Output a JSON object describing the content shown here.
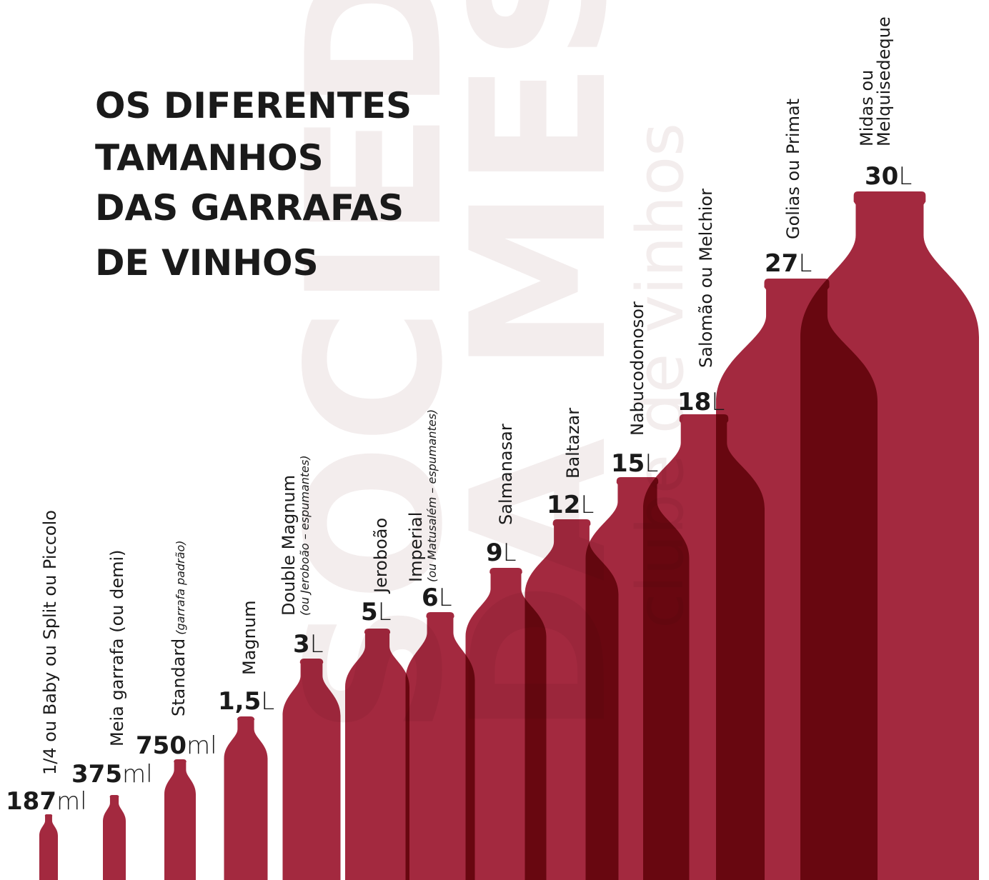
{
  "header": {
    "title": [
      "OS DIFERENTES",
      "TAMANHOS",
      "DAS GARRAFAS",
      "DE VINHOS"
    ]
  },
  "watermark": [
    "SOCIEDADE",
    "DA MESA",
    "clube de vinhos"
  ],
  "bottles": [
    {
      "name": [
        "1/4 ou Baby ou Split ou Piccolo"
      ],
      "amount": "187",
      "unit": "ml"
    },
    {
      "name": [
        "Meia garrafa (ou demi)"
      ],
      "amount": "375",
      "unit": "ml"
    },
    {
      "name": [
        "Standard"
      ],
      "note": "(garrafa padrão)",
      "amount": "750",
      "unit": "ml"
    },
    {
      "name": [
        "Magnum"
      ],
      "amount": "1,5",
      "unit": "L"
    },
    {
      "name": [
        "Double Magnum"
      ],
      "note": "(ou Jeroboão – espumantes)",
      "amount": "3",
      "unit": "L"
    },
    {
      "name": [
        "Jeroboão"
      ],
      "amount": "5",
      "unit": "L"
    },
    {
      "name": [
        "Imperial"
      ],
      "note": "(ou Matusalém – espumantes)",
      "amount": "6",
      "unit": "L"
    },
    {
      "name": [
        "Salmanasar"
      ],
      "amount": "9",
      "unit": "L"
    },
    {
      "name": [
        "Baltazar"
      ],
      "amount": "12",
      "unit": "L"
    },
    {
      "name": [
        "Nabucodonosor"
      ],
      "amount": "15",
      "unit": "L"
    },
    {
      "name": [
        "Salomão ou Melchior"
      ],
      "amount": "18",
      "unit": "L"
    },
    {
      "name": [
        "Golias ou Primat"
      ],
      "amount": "27",
      "unit": "L"
    },
    {
      "name": [
        "Midas ou",
        "Melquisedeque"
      ],
      "amount": "30",
      "unit": "L"
    }
  ]
}
